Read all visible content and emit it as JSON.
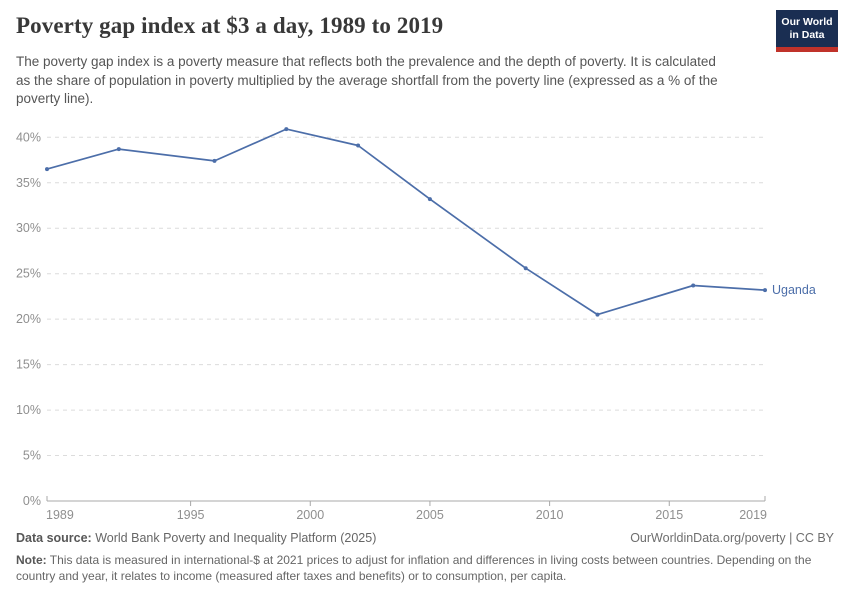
{
  "header": {
    "title": "Poverty gap index at $3 a day, 1989 to 2019",
    "subtitle": "The poverty gap index is a poverty measure that reflects both the prevalence and the depth of poverty. It is calculated as the share of population in poverty multiplied by the average shortfall from the poverty line (expressed as a % of the poverty line).",
    "logo": {
      "line1": "Our World",
      "line2": "in Data",
      "bg_color": "#1a2e52",
      "bar_color": "#c0322a"
    }
  },
  "chart_data": {
    "type": "line",
    "title": "Poverty gap index at $3 a day, 1989 to 2019",
    "x": [
      1989,
      1992,
      1996,
      1999,
      2002,
      2005,
      2009,
      2012,
      2016,
      2019
    ],
    "series": [
      {
        "name": "Uganda",
        "color": "#4c6ea9",
        "values": [
          36.5,
          38.7,
          37.4,
          40.9,
          39.1,
          33.2,
          25.6,
          20.5,
          23.7,
          23.2
        ]
      }
    ],
    "xlim": [
      1989,
      2019
    ],
    "ylim": [
      0,
      42
    ],
    "yticks": [
      0,
      5,
      10,
      15,
      20,
      25,
      30,
      35,
      40
    ],
    "ytick_suffix": "%",
    "xticks": [
      1989,
      1995,
      2000,
      2005,
      2010,
      2015,
      2019
    ],
    "grid": "horizontal-dashed",
    "legend_position": "end-of-line-label",
    "colors": {
      "gridline": "#dcdcdc",
      "axis_line": "#a8a8a8",
      "tick_label": "#8f8f8f",
      "series_label": "#4c6ea9"
    }
  },
  "footer": {
    "source_label": "Data source:",
    "source_text": "World Bank Poverty and Inequality Platform (2025)",
    "credit": "OurWorldinData.org/poverty | CC BY",
    "note_label": "Note:",
    "note_text": "This data is measured in international-$ at 2021 prices to adjust for inflation and differences in living costs between countries. Depending on the country and year, it relates to income (measured after taxes and benefits) or to consumption, per capita."
  }
}
